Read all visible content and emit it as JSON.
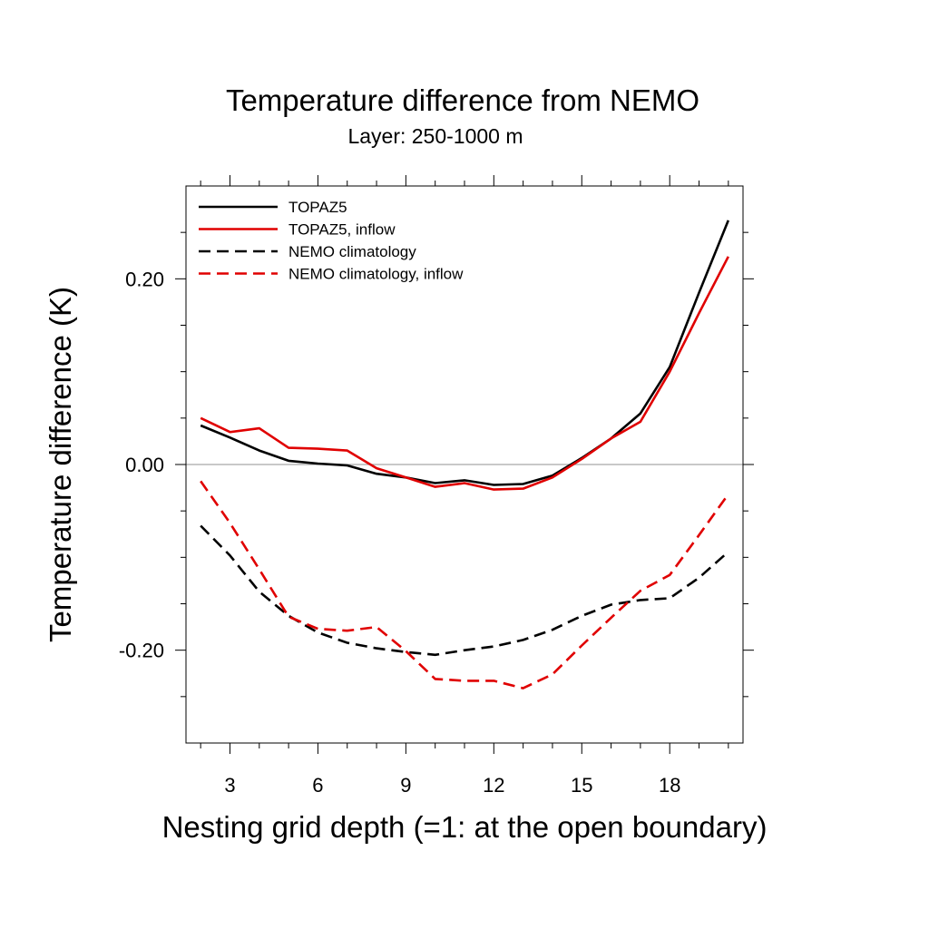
{
  "chart_data": {
    "type": "line",
    "title": "Temperature difference from NEMO",
    "subtitle": "Layer: 250-1000 m",
    "xlabel": "Nesting grid depth (=1: at the open boundary)",
    "ylabel": "Temperature difference (K)",
    "xlim": [
      1.5,
      20.5
    ],
    "ylim": [
      -0.3,
      0.3
    ],
    "xticks": [
      3,
      6,
      9,
      12,
      15,
      18
    ],
    "xtick_labels": [
      "3",
      "6",
      "9",
      "12",
      "15",
      "18"
    ],
    "x_minor_ticks": [
      2,
      4,
      5,
      7,
      8,
      10,
      11,
      13,
      14,
      16,
      17,
      19,
      20
    ],
    "yticks": [
      -0.2,
      0.0,
      0.2
    ],
    "ytick_labels": [
      "-0.20",
      "0.00",
      "0.20"
    ],
    "y_minor_ticks": [
      -0.25,
      -0.15,
      -0.1,
      -0.05,
      0.05,
      0.1,
      0.15,
      0.25
    ],
    "reference_line_y": 0.0,
    "grid": false,
    "legend_position": "top-left",
    "x": [
      2,
      3,
      4,
      5,
      6,
      7,
      8,
      9,
      10,
      11,
      12,
      13,
      14,
      15,
      16,
      17,
      18,
      19,
      20
    ],
    "series": [
      {
        "name": "TOPAZ5",
        "color": "#000000",
        "dash": "solid",
        "values": [
          0.042,
          0.029,
          0.015,
          0.004,
          0.001,
          -0.001,
          -0.01,
          -0.014,
          -0.02,
          -0.017,
          -0.022,
          -0.021,
          -0.012,
          0.007,
          0.028,
          0.055,
          0.105,
          0.185,
          0.263
        ]
      },
      {
        "name": "TOPAZ5, inflow",
        "color": "#e00000",
        "dash": "solid",
        "values": [
          0.05,
          0.035,
          0.039,
          0.018,
          0.017,
          0.015,
          -0.004,
          -0.014,
          -0.024,
          -0.02,
          -0.027,
          -0.026,
          -0.014,
          0.006,
          0.028,
          0.046,
          0.1,
          0.163,
          0.224
        ]
      },
      {
        "name": "NEMO climatology",
        "color": "#000000",
        "dash": "dashed",
        "values": [
          -0.066,
          -0.098,
          -0.137,
          -0.163,
          -0.181,
          -0.192,
          -0.198,
          -0.202,
          -0.205,
          -0.2,
          -0.196,
          -0.189,
          -0.178,
          -0.163,
          -0.151,
          -0.146,
          -0.144,
          -0.122,
          -0.094
        ]
      },
      {
        "name": "NEMO climatology, inflow",
        "color": "#e00000",
        "dash": "dashed",
        "values": [
          -0.018,
          -0.063,
          -0.113,
          -0.164,
          -0.177,
          -0.179,
          -0.175,
          -0.201,
          -0.231,
          -0.233,
          -0.233,
          -0.241,
          -0.226,
          -0.195,
          -0.165,
          -0.136,
          -0.119,
          -0.076,
          -0.032
        ]
      }
    ]
  }
}
